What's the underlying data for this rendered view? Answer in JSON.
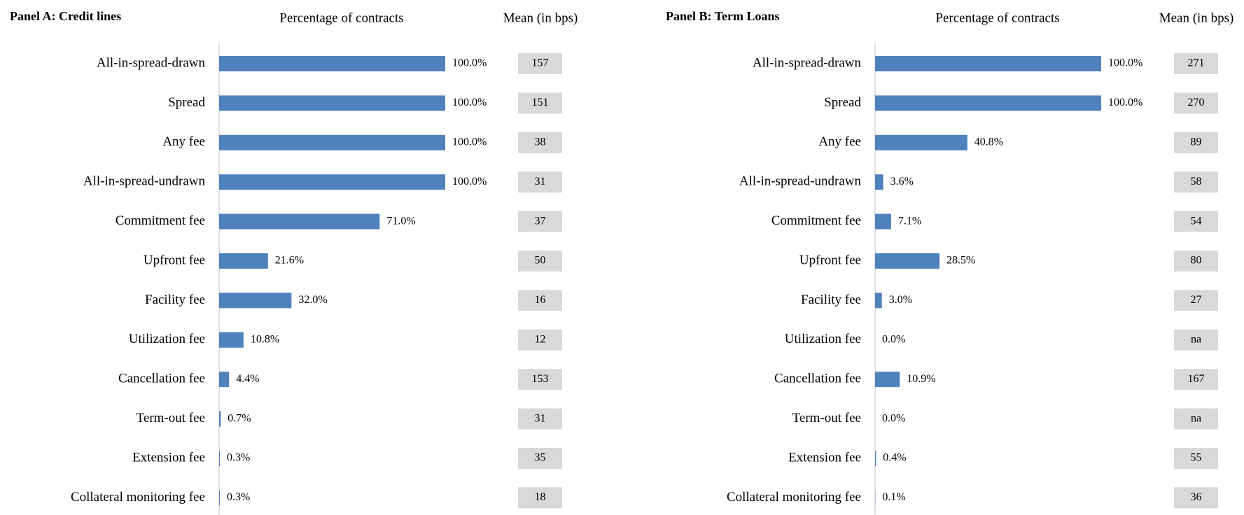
{
  "chart_data": [
    {
      "type": "bar",
      "title": "Panel A: Credit lines",
      "axis_title": "Percentage of contracts",
      "mean_title": "Mean (in bps)",
      "categories": [
        "All-in-spread-drawn",
        "Spread",
        "Any fee",
        "All-in-spread-undrawn",
        "Commitment fee",
        "Upfront fee",
        "Facility fee",
        "Utilization fee",
        "Cancellation fee",
        "Term-out fee",
        "Extension fee",
        "Collateral monitoring fee"
      ],
      "values": [
        100,
        100,
        100,
        100,
        71.0,
        21.6,
        32.0,
        10.8,
        4.4,
        0.7,
        0.3,
        0.3
      ],
      "value_labels": [
        "100.0%",
        "100.0%",
        "100.0%",
        "100.0%",
        "71.0%",
        "21.6%",
        "32.0%",
        "10.8%",
        "4.4%",
        "0.7%",
        "0.3%",
        "0.3%"
      ],
      "means": [
        157,
        151,
        38,
        31,
        37,
        50,
        16,
        12,
        153,
        31,
        35,
        18
      ],
      "xlim": [
        0,
        100
      ],
      "color": "#4f81bd"
    },
    {
      "type": "bar",
      "title": "Panel B: Term Loans",
      "axis_title": "Percentage of contracts",
      "mean_title": "Mean (in bps)",
      "categories": [
        "All-in-spread-drawn",
        "Spread",
        "Any fee",
        "All-in-spread-undrawn",
        "Commitment fee",
        "Upfront fee",
        "Facility fee",
        "Utilization fee",
        "Cancellation fee",
        "Term-out fee",
        "Extension fee",
        "Collateral monitoring fee"
      ],
      "values": [
        100,
        100,
        40.8,
        3.6,
        7.1,
        28.5,
        3.0,
        0.0,
        10.9,
        0.0,
        0.4,
        0.1
      ],
      "value_labels": [
        "100.0%",
        "100.0%",
        "40.8%",
        "3.6%",
        "7.1%",
        "28.5%",
        "3.0%",
        "0.0%",
        "10.9%",
        "0.0%",
        "0.4%",
        "0.1%"
      ],
      "means": [
        271,
        270,
        89,
        58,
        54,
        80,
        27,
        "na",
        167,
        "na",
        55,
        36
      ],
      "xlim": [
        0,
        100
      ],
      "color": "#4f81bd"
    }
  ]
}
